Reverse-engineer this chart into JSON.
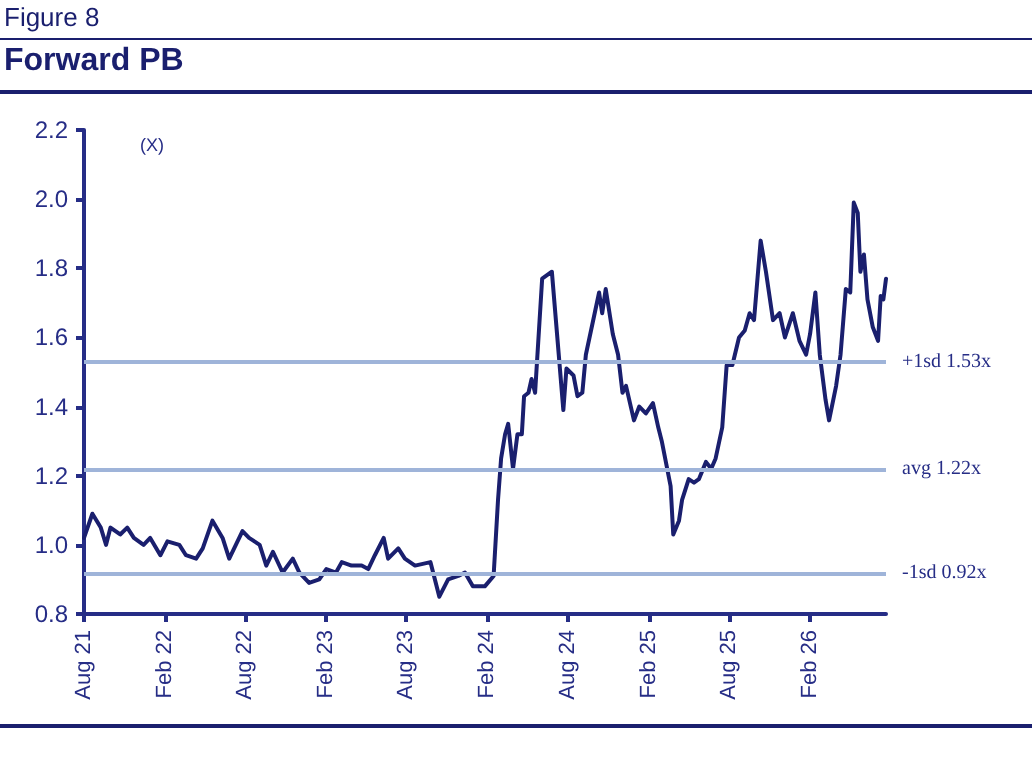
{
  "chart_data": {
    "type": "line",
    "title": "Forward PB",
    "subtitle": "Figure 8",
    "ylabel": "(X)",
    "x": [
      "2021-08-01",
      "2021-08-20",
      "2021-09-08",
      "2021-09-20",
      "2021-09-30",
      "2021-10-22",
      "2021-11-07",
      "2021-11-22",
      "2021-12-14",
      "2021-12-29",
      "2022-01-21",
      "2022-02-06",
      "2022-03-05",
      "2022-03-20",
      "2022-04-12",
      "2022-04-27",
      "2022-05-19",
      "2022-06-11",
      "2022-06-26",
      "2022-07-26",
      "2022-08-10",
      "2022-09-03",
      "2022-09-18",
      "2022-10-03",
      "2022-10-25",
      "2022-11-17",
      "2022-12-02",
      "2022-12-24",
      "2023-01-16",
      "2023-02-01",
      "2023-02-23",
      "2023-03-08",
      "2023-03-30",
      "2023-04-22",
      "2023-05-07",
      "2023-05-22",
      "2023-06-11",
      "2023-06-21",
      "2023-07-14",
      "2023-07-29",
      "2023-08-21",
      "2023-09-25",
      "2023-10-15",
      "2023-11-04",
      "2023-11-27",
      "2023-12-12",
      "2023-12-30",
      "2024-01-26",
      "2024-02-15",
      "2024-02-25",
      "2024-03-03",
      "2024-03-12",
      "2024-03-19",
      "2024-03-30",
      "2024-04-09",
      "2024-04-19",
      "2024-04-24",
      "2024-05-04",
      "2024-05-11",
      "2024-05-19",
      "2024-06-04",
      "2024-06-26",
      "2024-07-22",
      "2024-07-29",
      "2024-08-14",
      "2024-08-23",
      "2024-09-03",
      "2024-09-11",
      "2024-10-11",
      "2024-10-18",
      "2024-10-26",
      "2024-11-11",
      "2024-11-23",
      "2024-12-03",
      "2024-12-11",
      "2024-12-29",
      "2025-01-10",
      "2025-01-25",
      "2025-02-10",
      "2025-02-22",
      "2025-03-02",
      "2025-03-22",
      "2025-03-28",
      "2025-04-10",
      "2025-04-17",
      "2025-05-02",
      "2025-05-14",
      "2025-05-25",
      "2025-06-10",
      "2025-06-22",
      "2025-07-02",
      "2025-07-17",
      "2025-07-27",
      "2025-08-09",
      "2025-08-24",
      "2025-09-06",
      "2025-09-17",
      "2025-09-27",
      "2025-10-12",
      "2025-10-24",
      "2025-11-09",
      "2025-11-24",
      "2025-12-06",
      "2025-12-24",
      "2026-01-08",
      "2026-01-23",
      "2026-02-01",
      "2026-02-13",
      "2026-02-23",
      "2026-03-08",
      "2026-03-16",
      "2026-04-01",
      "2026-04-11",
      "2026-04-23",
      "2026-05-03",
      "2026-05-11",
      "2026-05-20",
      "2026-05-26",
      "2026-06-03",
      "2026-06-11",
      "2026-06-23",
      "2026-07-05",
      "2026-07-11",
      "2026-07-17",
      "2026-07-23"
    ],
    "series": [
      {
        "color": "#1a1f6e",
        "values": [
          1.02,
          1.09,
          1.05,
          1.0,
          1.05,
          1.03,
          1.05,
          1.02,
          1.0,
          1.02,
          0.97,
          1.01,
          1.0,
          0.97,
          0.96,
          0.99,
          1.07,
          1.02,
          0.96,
          1.04,
          1.02,
          1.0,
          0.94,
          0.98,
          0.92,
          0.96,
          0.92,
          0.89,
          0.9,
          0.93,
          0.92,
          0.95,
          0.94,
          0.94,
          0.93,
          0.97,
          1.02,
          0.96,
          0.99,
          0.96,
          0.94,
          0.95,
          0.85,
          0.9,
          0.91,
          0.92,
          0.88,
          0.88,
          0.91,
          1.13,
          1.25,
          1.32,
          1.35,
          1.22,
          1.32,
          1.32,
          1.43,
          1.44,
          1.48,
          1.44,
          1.77,
          1.79,
          1.39,
          1.51,
          1.49,
          1.43,
          1.44,
          1.55,
          1.73,
          1.67,
          1.74,
          1.61,
          1.55,
          1.44,
          1.46,
          1.36,
          1.4,
          1.38,
          1.41,
          1.34,
          1.3,
          1.17,
          1.03,
          1.07,
          1.13,
          1.19,
          1.18,
          1.19,
          1.24,
          1.22,
          1.25,
          1.34,
          1.52,
          1.52,
          1.6,
          1.62,
          1.67,
          1.65,
          1.88,
          1.79,
          1.65,
          1.67,
          1.6,
          1.67,
          1.59,
          1.55,
          1.61,
          1.73,
          1.55,
          1.42,
          1.36,
          1.46,
          1.55,
          1.74,
          1.73,
          1.99,
          1.96,
          1.79,
          1.84,
          1.71,
          1.63,
          1.59,
          1.72,
          1.71,
          1.77
        ]
      }
    ],
    "xlim": [
      "2021-08-01",
      "2026-07-23"
    ],
    "xticks": [
      {
        "value": "2021-08-01",
        "label": "Aug 21"
      },
      {
        "value": "2022-02-01",
        "label": "Feb 22"
      },
      {
        "value": "2022-08-01",
        "label": "Aug 22"
      },
      {
        "value": "2023-02-01",
        "label": "Feb 23"
      },
      {
        "value": "2023-08-01",
        "label": "Aug 23"
      },
      {
        "value": "2024-02-01",
        "label": "Feb 24"
      },
      {
        "value": "2024-08-01",
        "label": "Aug 24"
      },
      {
        "value": "2025-02-01",
        "label": "Feb 25"
      },
      {
        "value": "2025-08-01",
        "label": "Aug 25"
      },
      {
        "value": "2026-02-01",
        "label": "Feb 26"
      }
    ],
    "ylim": [
      0.8,
      2.2
    ],
    "yticks": [
      0.8,
      {
        "value": 1,
        "label": "1.0"
      },
      1.2,
      1.4,
      1.6,
      1.8,
      {
        "value": 2,
        "label": "2.0"
      },
      2.2
    ],
    "ref_lines": [
      {
        "axis": "y",
        "value": 1.53,
        "label": "+1sd 1.53x",
        "color": "#9fb4d9"
      },
      {
        "axis": "y",
        "value": 1.22,
        "label": "avg 1.22x",
        "color": "#9fb4d9"
      },
      {
        "axis": "y",
        "value": 0.92,
        "label": "-1sd 0.92x",
        "color": "#9fb4d9"
      }
    ],
    "grid": false,
    "marker": "none",
    "line_style": "solid"
  }
}
